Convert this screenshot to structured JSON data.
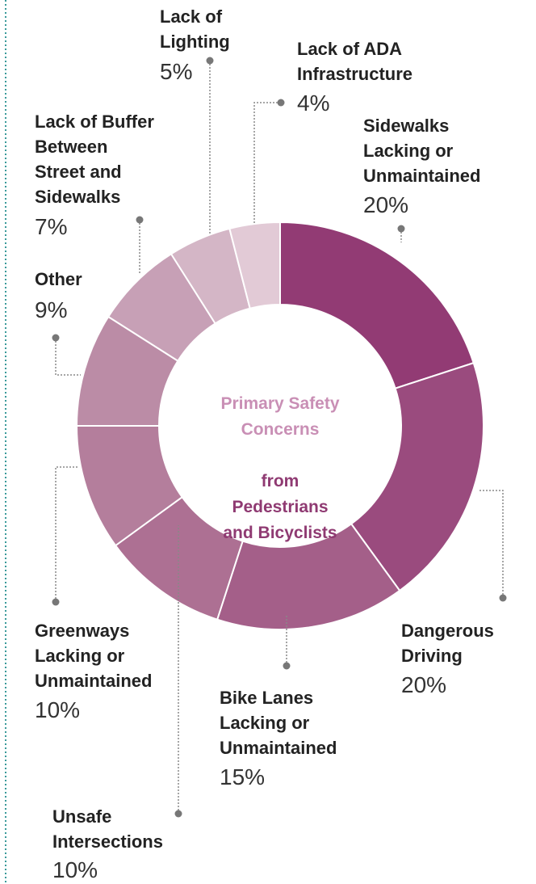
{
  "chart_data": {
    "type": "donut",
    "title": "Primary Safety\nConcerns",
    "subtitle": "from\nPedestrians\nand Bicyclists",
    "categories": [
      "Sidewalks\nLacking or\nUnmaintained",
      "Dangerous\nDriving",
      "Bike Lanes\nLacking or\nUnmaintained",
      "Unsafe\nIntersections",
      "Greenways\nLacking or\nUnmaintained",
      "Other",
      "Lack of Buffer\nBetween\nStreet and\nSidewalks",
      "Lack of\nLighting",
      "Lack of ADA\nInfrastructure"
    ],
    "values": [
      20,
      20,
      15,
      10,
      10,
      9,
      7,
      5,
      4
    ],
    "value_labels": [
      "20%",
      "20%",
      "15%",
      "10%",
      "10%",
      "9%",
      "7%",
      "5%",
      "4%"
    ],
    "colors": [
      "#923b74",
      "#9a4b7e",
      "#a45f89",
      "#ad7093",
      "#b47e9c",
      "#bb8ca6",
      "#c7a0b6",
      "#d4b6c6",
      "#e2cad6"
    ]
  }
}
